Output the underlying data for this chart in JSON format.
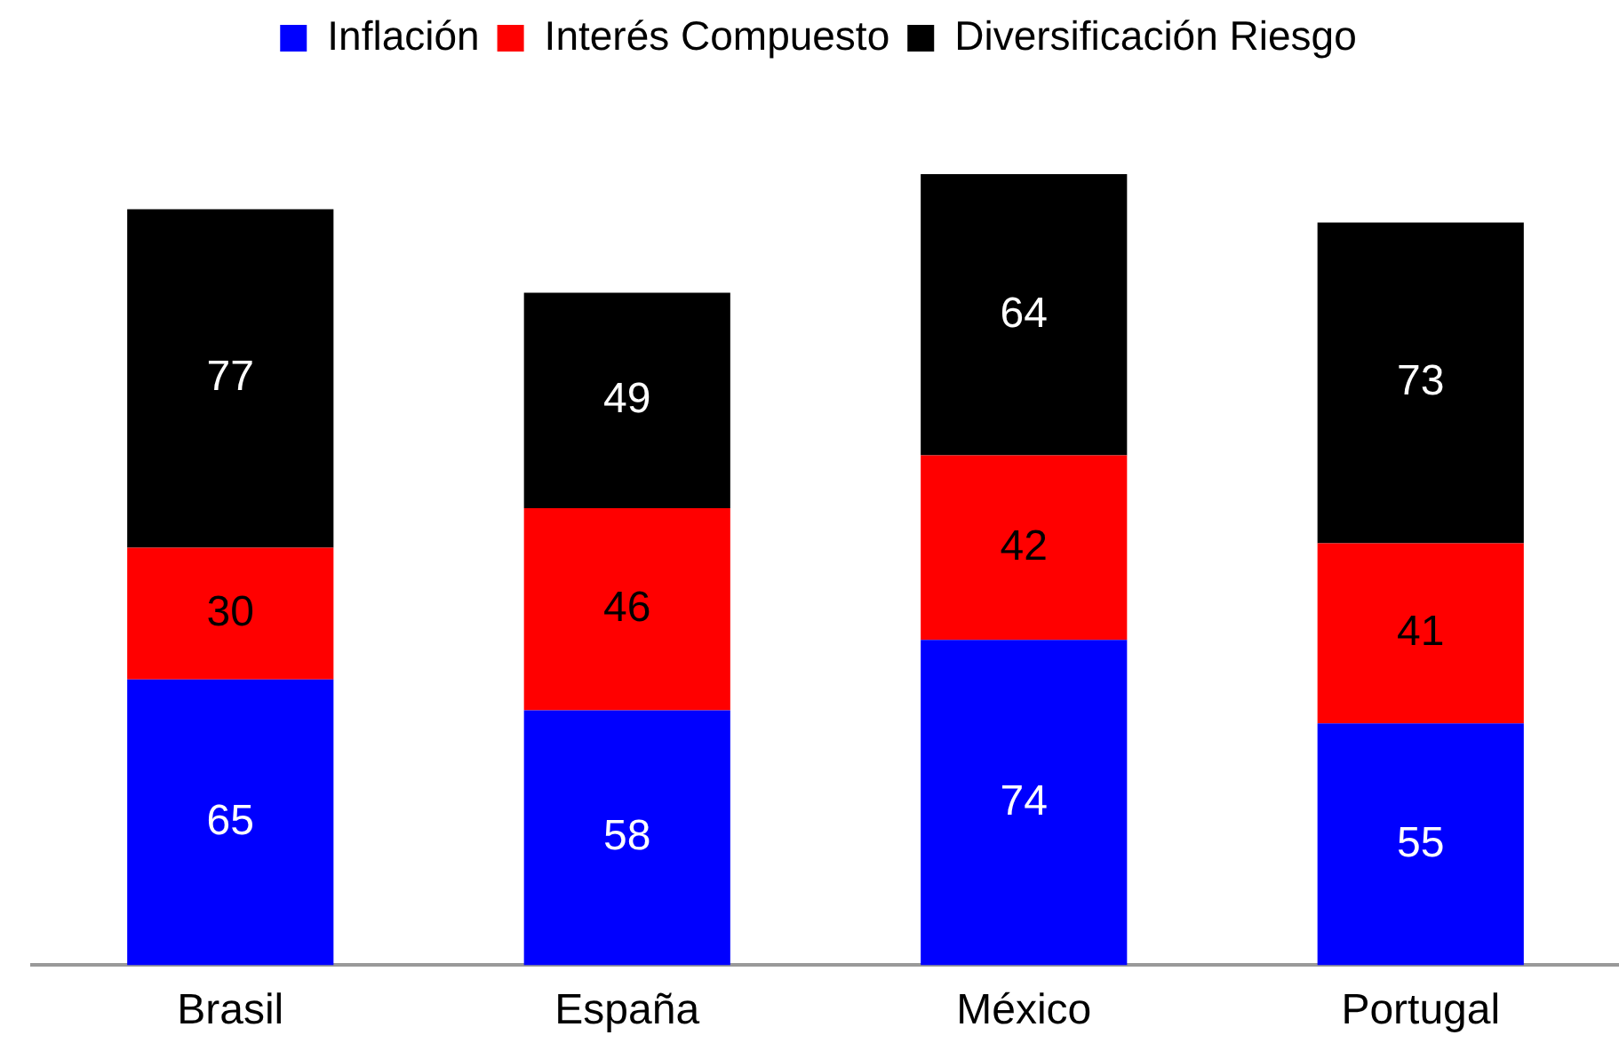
{
  "chart_data": {
    "type": "bar",
    "stacked": true,
    "relative": false,
    "categories": [
      "Brasil",
      "España",
      "México",
      "Portugal"
    ],
    "series": [
      {
        "name": "Inflación",
        "color": "#0000ff",
        "values": [
          65,
          58,
          74,
          55
        ]
      },
      {
        "name": "Interés Compuesto",
        "color": "#ff0000",
        "values": [
          30,
          46,
          42,
          41
        ]
      },
      {
        "name": "Diversificación Riesgo",
        "color": "#000000",
        "values": [
          77,
          49,
          64,
          73
        ]
      }
    ],
    "data_labels": true,
    "legend": "top",
    "grid": false
  }
}
